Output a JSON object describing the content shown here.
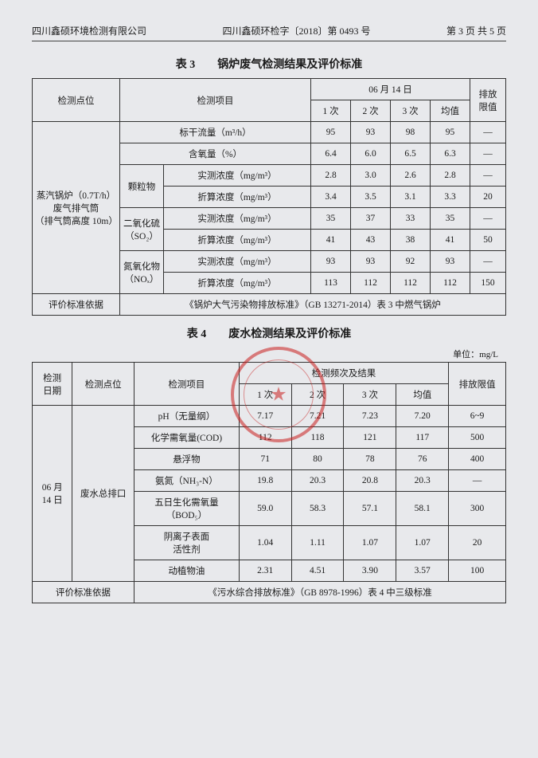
{
  "header": {
    "company": "四川鑫硕环境检测有限公司",
    "docnum": "四川鑫硕环检字〔2018〕第 0493 号",
    "page": "第 3 页 共 5 页"
  },
  "table3": {
    "title": "表 3　　锅炉废气检测结果及评价标准",
    "colheads": {
      "point": "检测点位",
      "item": "检测项目",
      "date": "06 月 14 日",
      "t1": "1 次",
      "t2": "2 次",
      "t3": "3 次",
      "avg": "均值",
      "limit": "排放\n限值"
    },
    "point": "蒸汽锅炉（0.7T/h）\n废气排气筒\n（排气筒高度 10m）",
    "rows": [
      {
        "item": "标干流量（m³/h）",
        "v1": "95",
        "v2": "93",
        "v3": "98",
        "avg": "95",
        "lim": "—"
      },
      {
        "item": "含氧量（%）",
        "v1": "6.4",
        "v2": "6.0",
        "v3": "6.5",
        "avg": "6.3",
        "lim": "—"
      }
    ],
    "groups": [
      {
        "name": "颗粒物",
        "rows": [
          {
            "item": "实测浓度（mg/m³）",
            "v1": "2.8",
            "v2": "3.0",
            "v3": "2.6",
            "avg": "2.8",
            "lim": "—"
          },
          {
            "item": "折算浓度（mg/m³）",
            "v1": "3.4",
            "v2": "3.5",
            "v3": "3.1",
            "avg": "3.3",
            "lim": "20"
          }
        ]
      },
      {
        "name": "二氧化硫\n（SO₂）",
        "rows": [
          {
            "item": "实测浓度（mg/m³）",
            "v1": "35",
            "v2": "37",
            "v3": "33",
            "avg": "35",
            "lim": "—"
          },
          {
            "item": "折算浓度（mg/m³）",
            "v1": "41",
            "v2": "43",
            "v3": "38",
            "avg": "41",
            "lim": "50"
          }
        ]
      },
      {
        "name": "氮氧化物\n（NOₓ）",
        "rows": [
          {
            "item": "实测浓度（mg/m³）",
            "v1": "93",
            "v2": "93",
            "v3": "92",
            "avg": "93",
            "lim": "—"
          },
          {
            "item": "折算浓度（mg/m³）",
            "v1": "113",
            "v2": "112",
            "v3": "112",
            "avg": "112",
            "lim": "150"
          }
        ]
      }
    ],
    "basislabel": "评价标准依据",
    "basis": "《锅炉大气污染物排放标准》（GB 13271-2014）表 3 中燃气锅炉"
  },
  "table4": {
    "title": "表 4　　废水检测结果及评价标准",
    "unit": "单位：mg/L",
    "colheads": {
      "date": "检测\n日期",
      "point": "检测点位",
      "item": "检测项目",
      "freq": "检测频次及结果",
      "t1": "1 次",
      "t2": "2 次",
      "t3": "3 次",
      "avg": "均值",
      "limit": "排放限值"
    },
    "date": "06 月\n14 日",
    "point": "废水总排口",
    "rows": [
      {
        "item": "pH（无量纲）",
        "v1": "7.17",
        "v2": "7.21",
        "v3": "7.23",
        "avg": "7.20",
        "lim": "6~9"
      },
      {
        "item": "化学需氧量(COD)",
        "v1": "112",
        "v2": "118",
        "v3": "121",
        "avg": "117",
        "lim": "500"
      },
      {
        "item": "悬浮物",
        "v1": "71",
        "v2": "80",
        "v3": "78",
        "avg": "76",
        "lim": "400"
      },
      {
        "item": "氨氮（NH₃-N）",
        "v1": "19.8",
        "v2": "20.3",
        "v3": "20.8",
        "avg": "20.3",
        "lim": "—"
      },
      {
        "item": "五日生化需氧量\n（BOD₅）",
        "v1": "59.0",
        "v2": "58.3",
        "v3": "57.1",
        "avg": "58.1",
        "lim": "300"
      },
      {
        "item": "阴离子表面\n活性剂",
        "v1": "1.04",
        "v2": "1.11",
        "v3": "1.07",
        "avg": "1.07",
        "lim": "20"
      },
      {
        "item": "动植物油",
        "v1": "2.31",
        "v2": "4.51",
        "v3": "3.90",
        "avg": "3.57",
        "lim": "100"
      }
    ],
    "basislabel": "评价标准依据",
    "basis": "《污水综合排放标准》（GB 8978-1996）表 4 中三级标准"
  }
}
